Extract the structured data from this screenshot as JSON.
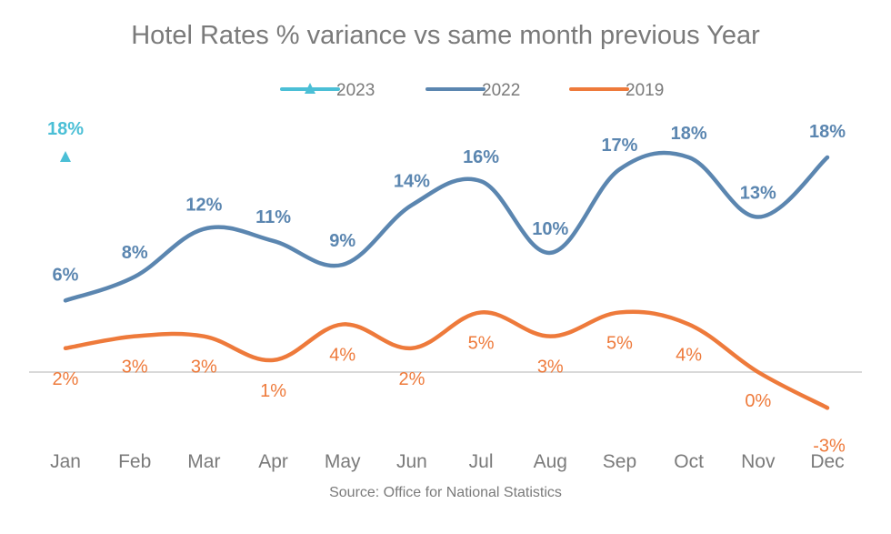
{
  "chart_data": {
    "type": "line",
    "title": "Hotel Rates % variance vs same month previous Year",
    "source": "Source: Office for National Statistics",
    "categories": [
      "Jan",
      "Feb",
      "Mar",
      "Apr",
      "May",
      "Jun",
      "Jul",
      "Aug",
      "Sep",
      "Oct",
      "Nov",
      "Dec"
    ],
    "ylim": [
      -5,
      20
    ],
    "legend_position": "top",
    "grid": false,
    "series": [
      {
        "name": "2023",
        "color": "#4bbfd6",
        "marker": "triangle",
        "values": [
          18,
          null,
          null,
          null,
          null,
          null,
          null,
          null,
          null,
          null,
          null,
          null
        ],
        "labels": [
          "18%",
          "",
          "",
          "",
          "",
          "",
          "",
          "",
          "",
          "",
          "",
          ""
        ]
      },
      {
        "name": "2022",
        "color": "#5b86b0",
        "marker": "none",
        "values": [
          6,
          8,
          12,
          11,
          9,
          14,
          16,
          10,
          17,
          18,
          13,
          18
        ],
        "labels": [
          "6%",
          "8%",
          "12%",
          "11%",
          "9%",
          "14%",
          "16%",
          "10%",
          "17%",
          "18%",
          "13%",
          "18%"
        ]
      },
      {
        "name": "2019",
        "color": "#ee7a3b",
        "marker": "none",
        "values": [
          2,
          3,
          3,
          1,
          4,
          2,
          5,
          3,
          5,
          4,
          0,
          -3
        ],
        "labels": [
          "2%",
          "3%",
          "3%",
          "1%",
          "4%",
          "2%",
          "5%",
          "3%",
          "5%",
          "4%",
          "0%",
          "-3%"
        ]
      }
    ]
  }
}
